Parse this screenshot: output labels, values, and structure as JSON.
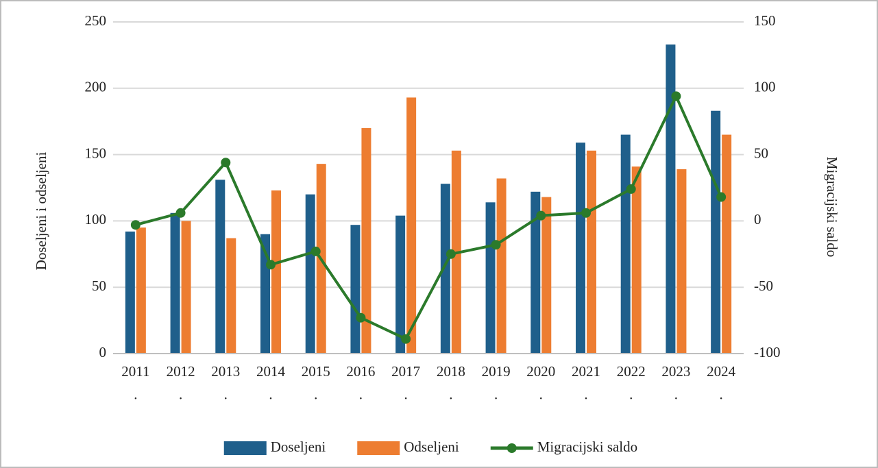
{
  "chart_data": {
    "type": "bar",
    "y_label": "Doseljeni i odseljeni",
    "y2_label": "Migracijski saldo",
    "categories": [
      "2011\n.",
      "2012\n.",
      "2013\n.",
      "2014\n.",
      "2015\n.",
      "2016\n.",
      "2017\n.",
      "2018\n.",
      "2019\n.",
      "2020\n.",
      "2021\n.",
      "2022\n.",
      "2023\n.",
      "2024\n."
    ],
    "series": [
      {
        "name": "Doseljeni",
        "type": "bar",
        "color": "#1f5f8b",
        "values": [
          92,
          106,
          131,
          90,
          120,
          97,
          104,
          128,
          114,
          122,
          159,
          165,
          233,
          183
        ]
      },
      {
        "name": "Odseljeni",
        "type": "bar",
        "color": "#ed7d31",
        "values": [
          95,
          100,
          87,
          123,
          143,
          170,
          193,
          153,
          132,
          118,
          153,
          141,
          139,
          165
        ]
      },
      {
        "name": "Migracijski saldo",
        "type": "line",
        "axis": "y2",
        "color": "#2b7a2b",
        "values": [
          -3,
          6,
          44,
          -33,
          -23,
          -73,
          -89,
          -25,
          -18,
          4,
          6,
          24,
          94,
          18
        ]
      }
    ],
    "ylim": [
      0,
      250
    ],
    "yticks": [
      0,
      50,
      100,
      150,
      200,
      250
    ],
    "y2lim": [
      -100,
      150
    ],
    "y2ticks": [
      -100,
      -50,
      0,
      50,
      100,
      150
    ],
    "grid": true,
    "legend": "bottom"
  }
}
